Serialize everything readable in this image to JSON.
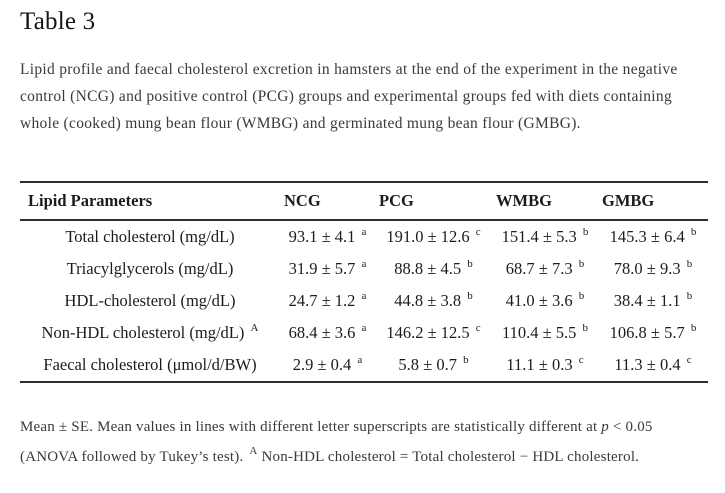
{
  "page": {
    "title": "Table 3"
  },
  "caption": {
    "lines": [
      "Lipid profile and faecal cholesterol excretion in hamsters at the end of the experiment in the negative",
      "control (NCG) and positive control (PCG) groups and experimental groups fed with diets containing",
      "whole (cooked) mung bean flour (WMBG) and germinated mung bean flour (GMBG)."
    ]
  },
  "table": {
    "headers": [
      "Lipid Parameters",
      "NCG",
      "PCG",
      "WMBG",
      "GMBG"
    ],
    "rows": [
      {
        "label": "Total cholesterol (mg/dL)",
        "label_sup": "",
        "values": [
          {
            "text": "93.1 ± 4.1",
            "sup": "a"
          },
          {
            "text": "191.0 ± 12.6",
            "sup": "c"
          },
          {
            "text": "151.4 ± 5.3",
            "sup": "b"
          },
          {
            "text": "145.3 ± 6.4",
            "sup": "b"
          }
        ]
      },
      {
        "label": "Triacylglycerols (mg/dL)",
        "label_sup": "",
        "values": [
          {
            "text": "31.9 ± 5.7",
            "sup": "a"
          },
          {
            "text": "88.8 ± 4.5",
            "sup": "b"
          },
          {
            "text": "68.7 ± 7.3",
            "sup": "b"
          },
          {
            "text": "78.0 ± 9.3",
            "sup": "b"
          }
        ]
      },
      {
        "label": "HDL-cholesterol (mg/dL)",
        "label_sup": "",
        "values": [
          {
            "text": "24.7 ± 1.2",
            "sup": "a"
          },
          {
            "text": "44.8 ± 3.8",
            "sup": "b"
          },
          {
            "text": "41.0 ± 3.6",
            "sup": "b"
          },
          {
            "text": "38.4 ± 1.1",
            "sup": "b"
          }
        ]
      },
      {
        "label": "Non-HDL cholesterol (mg/dL)",
        "label_sup": "A",
        "values": [
          {
            "text": "68.4 ± 3.6",
            "sup": "a"
          },
          {
            "text": "146.2 ± 12.5",
            "sup": "c"
          },
          {
            "text": "110.4 ± 5.5",
            "sup": "b"
          },
          {
            "text": "106.8 ± 5.7",
            "sup": "b"
          }
        ]
      },
      {
        "label": "Faecal cholesterol (μmol/d/BW)",
        "label_sup": "",
        "values": [
          {
            "text": "2.9 ± 0.4",
            "sup": "a"
          },
          {
            "text": "5.8 ± 0.7",
            "sup": "b"
          },
          {
            "text": "11.1 ± 0.3",
            "sup": "c"
          },
          {
            "text": "11.3 ± 0.4",
            "sup": "c"
          }
        ]
      }
    ]
  },
  "footnote": {
    "line1_pre": "Mean ± SE. Mean values in lines with different letter superscripts are statistically different at ",
    "line1_italic": "p",
    "line1_post": " < 0.05",
    "line2_pre": "(ANOVA followed by Tukey’s test). ",
    "line2_sup": "A",
    "line2_post": " Non-HDL cholesterol = Total cholesterol − HDL cholesterol."
  }
}
